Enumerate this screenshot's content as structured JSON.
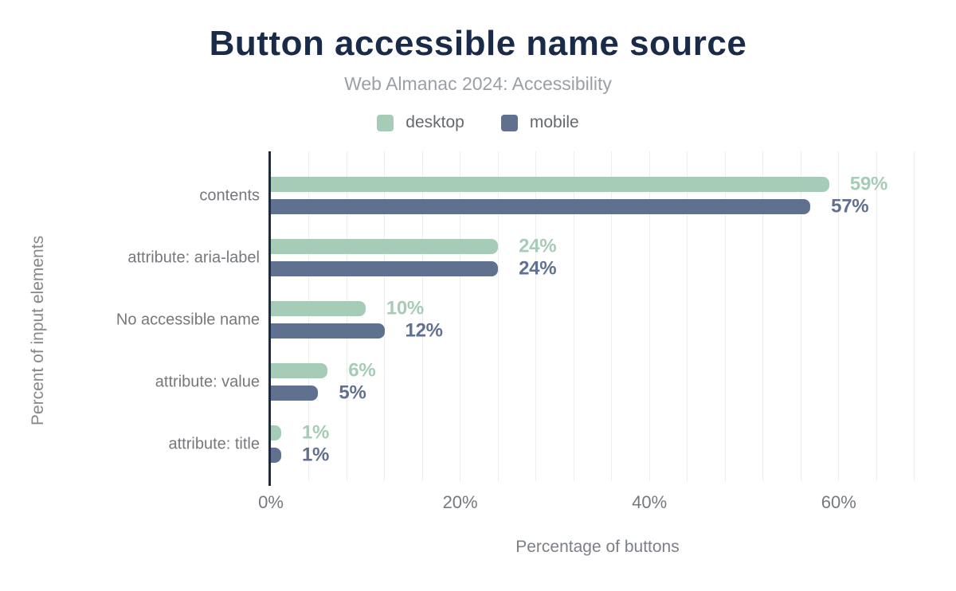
{
  "header": {
    "title": "Button accessible name source",
    "subtitle": "Web Almanac 2024: Accessibility"
  },
  "chart_data": {
    "type": "bar",
    "orientation": "horizontal",
    "title": "Button accessible name source",
    "subtitle": "Web Almanac 2024: Accessibility",
    "categories": [
      "contents",
      "attribute: aria-label",
      "No accessible name",
      "attribute: value",
      "attribute: title"
    ],
    "series": [
      {
        "name": "desktop",
        "color": "#a6ccb8",
        "values": [
          59,
          24,
          10,
          6,
          1
        ]
      },
      {
        "name": "mobile",
        "color": "#60708f",
        "values": [
          57,
          24,
          12,
          5,
          1
        ]
      }
    ],
    "value_label_suffix": "%",
    "xlabel": "Percentage of buttons",
    "ylabel": "Percent of input elements",
    "x_ticks": [
      {
        "value": 0,
        "label": "0%"
      },
      {
        "value": 20,
        "label": "20%"
      },
      {
        "value": 40,
        "label": "40%"
      },
      {
        "value": 60,
        "label": "60%"
      }
    ],
    "xlim": [
      0,
      69
    ],
    "grid": "vertical minor gridlines every 4%",
    "legend_position": "top"
  },
  "colors": {
    "title_navy": "#1a2b49",
    "axis_navy": "#1a2b49",
    "desktop_green": "#a6ccb8",
    "mobile_blue": "#60708f",
    "gridline": "#ededed",
    "label_gray": "#75787c",
    "subtitle_gray": "#9aa0a6"
  }
}
